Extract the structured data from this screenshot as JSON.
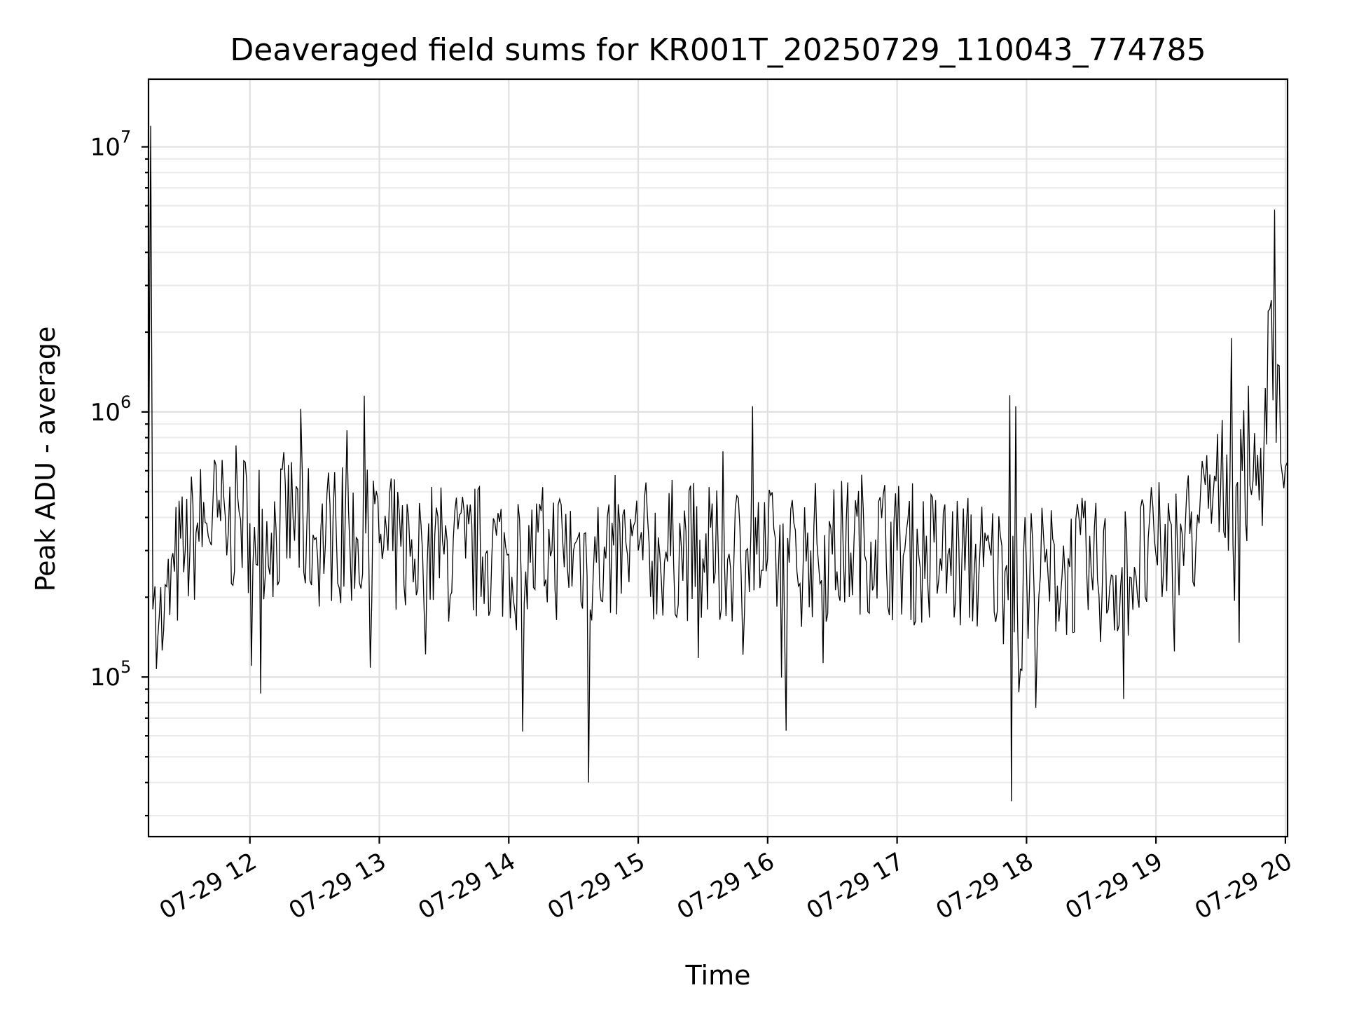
{
  "chart_data": {
    "type": "line",
    "title": "Deaveraged field sums for KR001T_20250729_110043_774785",
    "xlabel": "Time",
    "ylabel": "Peak ADU - average",
    "x_scale": "time",
    "y_scale": "log",
    "xlim": [
      "2025-07-29T11:13",
      "2025-07-29T20:01"
    ],
    "ylim": [
      25000,
      18000000
    ],
    "x_ticks": [
      {
        "at": "2025-07-29T12:00",
        "label": "07-29 12"
      },
      {
        "at": "2025-07-29T13:00",
        "label": "07-29 13"
      },
      {
        "at": "2025-07-29T14:00",
        "label": "07-29 14"
      },
      {
        "at": "2025-07-29T15:00",
        "label": "07-29 15"
      },
      {
        "at": "2025-07-29T16:00",
        "label": "07-29 16"
      },
      {
        "at": "2025-07-29T17:00",
        "label": "07-29 17"
      },
      {
        "at": "2025-07-29T18:00",
        "label": "07-29 18"
      },
      {
        "at": "2025-07-29T19:00",
        "label": "07-29 19"
      },
      {
        "at": "2025-07-29T20:00",
        "label": "07-29 20"
      }
    ],
    "y_ticks": [
      {
        "value": 100000,
        "base": "10",
        "exp": "5"
      },
      {
        "value": 1000000,
        "base": "10",
        "exp": "6"
      },
      {
        "value": 10000000,
        "base": "10",
        "exp": "7"
      }
    ],
    "grid": true,
    "legend": "none",
    "series": [
      {
        "color": "#000000",
        "x": [
          "2025-07-29T11:13",
          "2025-07-29T11:14",
          "2025-07-29T11:15",
          "2025-07-29T11:16",
          "2025-07-29T11:18",
          "2025-07-29T11:20",
          "2025-07-29T11:25",
          "2025-07-29T11:30",
          "2025-07-29T11:35",
          "2025-07-29T11:40",
          "2025-07-29T11:45",
          "2025-07-29T11:50",
          "2025-07-29T11:55",
          "2025-07-29T12:00",
          "2025-07-29T12:10",
          "2025-07-29T12:20",
          "2025-07-29T12:30",
          "2025-07-29T12:40",
          "2025-07-29T12:50",
          "2025-07-29T12:53",
          "2025-07-29T13:00",
          "2025-07-29T13:04",
          "2025-07-29T13:10",
          "2025-07-29T13:20",
          "2025-07-29T13:30",
          "2025-07-29T13:40",
          "2025-07-29T13:50",
          "2025-07-29T14:00",
          "2025-07-29T14:10",
          "2025-07-29T14:20",
          "2025-07-29T14:30",
          "2025-07-29T14:37",
          "2025-07-29T14:45",
          "2025-07-29T14:55",
          "2025-07-29T15:00",
          "2025-07-29T15:10",
          "2025-07-29T15:20",
          "2025-07-29T15:30",
          "2025-07-29T15:40",
          "2025-07-29T15:50",
          "2025-07-29T15:53",
          "2025-07-29T15:55",
          "2025-07-29T16:00",
          "2025-07-29T16:10",
          "2025-07-29T16:20",
          "2025-07-29T16:30",
          "2025-07-29T16:40",
          "2025-07-29T16:50",
          "2025-07-29T17:00",
          "2025-07-29T17:10",
          "2025-07-29T17:20",
          "2025-07-29T17:30",
          "2025-07-29T17:40",
          "2025-07-29T17:50",
          "2025-07-29T17:53",
          "2025-07-29T17:55",
          "2025-07-29T18:00",
          "2025-07-29T18:10",
          "2025-07-29T18:20",
          "2025-07-29T18:30",
          "2025-07-29T18:40",
          "2025-07-29T18:50",
          "2025-07-29T19:00",
          "2025-07-29T19:10",
          "2025-07-29T19:20",
          "2025-07-29T19:30",
          "2025-07-29T19:35",
          "2025-07-29T19:40",
          "2025-07-29T19:45",
          "2025-07-29T19:50",
          "2025-07-29T19:52",
          "2025-07-29T19:55",
          "2025-07-29T20:00",
          "2025-07-29T20:01"
        ],
        "y": [
          380000,
          12000000,
          180000,
          220000,
          170000,
          150000,
          250000,
          300000,
          350000,
          380000,
          400000,
          350000,
          420000,
          380000,
          350000,
          400000,
          330000,
          360000,
          330000,
          1150000,
          320000,
          300000,
          310000,
          300000,
          290000,
          280000,
          300000,
          290000,
          270000,
          300000,
          300000,
          40000,
          280000,
          290000,
          300000,
          290000,
          310000,
          280000,
          270000,
          300000,
          1050000,
          290000,
          280000,
          270000,
          300000,
          290000,
          320000,
          330000,
          300000,
          290000,
          280000,
          270000,
          260000,
          250000,
          34000,
          1050000,
          250000,
          240000,
          260000,
          250000,
          240000,
          260000,
          290000,
          310000,
          380000,
          520000,
          1900000,
          600000,
          550000,
          700000,
          2400000,
          5800000,
          620000,
          650000
        ]
      }
    ]
  }
}
